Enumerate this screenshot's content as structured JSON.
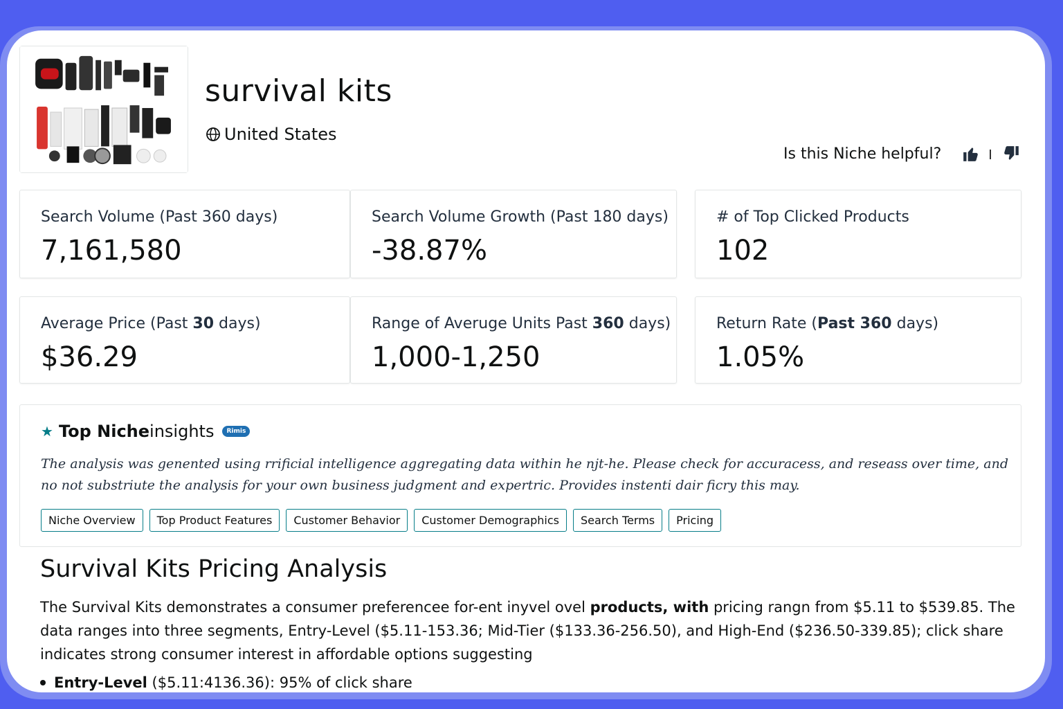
{
  "header": {
    "title": "survival kits",
    "country": "United States",
    "helpful_question": "Is this Niche helpful?"
  },
  "metrics": [
    {
      "label": "Search Volume (Past 360 days)",
      "value": "7,161,580"
    },
    {
      "label": "Search Volume Growth  (Past 180 days)",
      "value": "-38.87%"
    },
    {
      "label": "# of Top Clicked Products",
      "value": "102"
    },
    {
      "label_pre": "Average Price  (Past ",
      "label_bold": "30",
      "label_post": " days)",
      "value": "$36.29"
    },
    {
      "label_pre": "Range of Averuge Units Past ",
      "label_bold": "360",
      "label_post": " days)",
      "value": "1,000-1,250"
    },
    {
      "label_pre": "Return Rate (",
      "label_bold": "Past 360",
      "label_post": " days)",
      "value": "1.05%"
    }
  ],
  "insights": {
    "title_bold": "Top Niche",
    "title_rest": "insights",
    "badge": "Rimis",
    "disclaimer": "The analysis was genented using rrificial intelligence aggregating  data within he njt-he. Please check for accuracess, and reseass over time, and no not substriute the analysis for your own business judgment and expertric. Provides instenti dair ficry this may.",
    "tabs": [
      "Niche Overview",
      "Top Product Features",
      "Customer Behavior",
      "Customer Demographics",
      "Search Terms",
      "Pricing"
    ]
  },
  "analysis": {
    "title": "Survival Kits Pricing Analysis",
    "body_1": "The Survival Kits demonstrates a consumer preferencee for-ent inyvel ovel ",
    "body_bold_1": "products, with",
    "body_2": " pricing rangn from $5.11 to $539.85. The data ranges into three segments, Entry-Level ($5.11-153.36; Mid-Tier ($133.36-256.50), and High-End ($236.50-339.85); click share indicates strong consumer interest in afforda",
    "body_bold_2": "ble options suggesting",
    "bullet_label": "Entry-Level",
    "bullet_range": " ($5.11:4136.36): ",
    "bullet_value": "95%",
    "bullet_rest": " of click share"
  },
  "colors": {
    "background": "#4f5ef0",
    "accent_teal": "#067d88",
    "badge_blue": "#1f6fb2"
  },
  "icons": [
    "globe-icon",
    "thumbs-up-icon",
    "thumbs-down-icon",
    "star-icon"
  ]
}
